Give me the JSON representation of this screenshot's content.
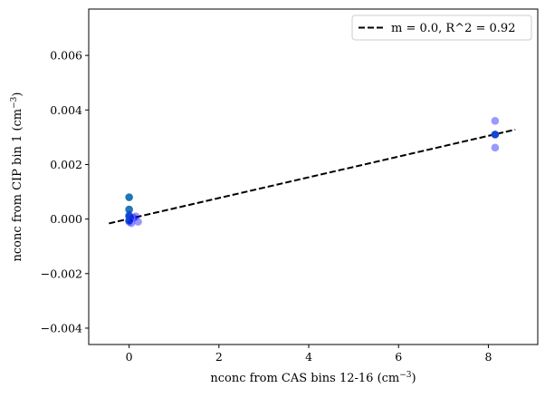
{
  "chart_data": {
    "type": "scatter",
    "xlabel": "nconc from CAS bins 12-16 (cm",
    "ylabel": "nconc from CIP bin 1 (cm",
    "unit_exponent": "−3",
    "unit_close": ")",
    "xlim": [
      -0.9,
      9.1
    ],
    "ylim": [
      -0.0046,
      0.0077
    ],
    "xticks": [
      0,
      2,
      4,
      6,
      8
    ],
    "yticks": [
      -0.004,
      -0.002,
      0.0,
      0.002,
      0.004,
      0.006
    ],
    "xtick_labels": [
      "0",
      "2",
      "4",
      "6",
      "8"
    ],
    "ytick_labels": [
      "−0.004",
      "−0.002",
      "0.000",
      "0.002",
      "0.004",
      "0.006"
    ],
    "legend": {
      "placement": "top-right",
      "entries": [
        {
          "label": "m = 0.0, R^2 = 0.92",
          "style": "dashed-line"
        }
      ]
    },
    "fit_line": {
      "x": [
        -0.45,
        8.6
      ],
      "y": [
        -0.00016,
        0.00328
      ],
      "color": "#000000"
    },
    "series": [
      {
        "color": "#1f77b4",
        "alpha": 1.0,
        "points": [
          {
            "x": 0.0,
            "y": 0.0008
          },
          {
            "x": 0.0,
            "y": 0.00035
          },
          {
            "x": 0.0,
            "y": 0.0001
          },
          {
            "x": 0.02,
            "y": 5e-05
          },
          {
            "x": 0.0,
            "y": -5e-05
          },
          {
            "x": 8.15,
            "y": 0.0031
          }
        ]
      },
      {
        "color": "#0000ff",
        "alpha": 0.4,
        "points": [
          {
            "x": 0.0,
            "y": -0.0001
          },
          {
            "x": 0.05,
            "y": -0.00015
          },
          {
            "x": 0.1,
            "y": 5e-05
          },
          {
            "x": 0.15,
            "y": 0.0001
          },
          {
            "x": 0.2,
            "y": -0.0001
          },
          {
            "x": 0.0,
            "y": 0.00015
          },
          {
            "x": 8.15,
            "y": 0.0036
          },
          {
            "x": 8.15,
            "y": 0.0031
          },
          {
            "x": 8.15,
            "y": 0.00262
          }
        ]
      }
    ]
  }
}
